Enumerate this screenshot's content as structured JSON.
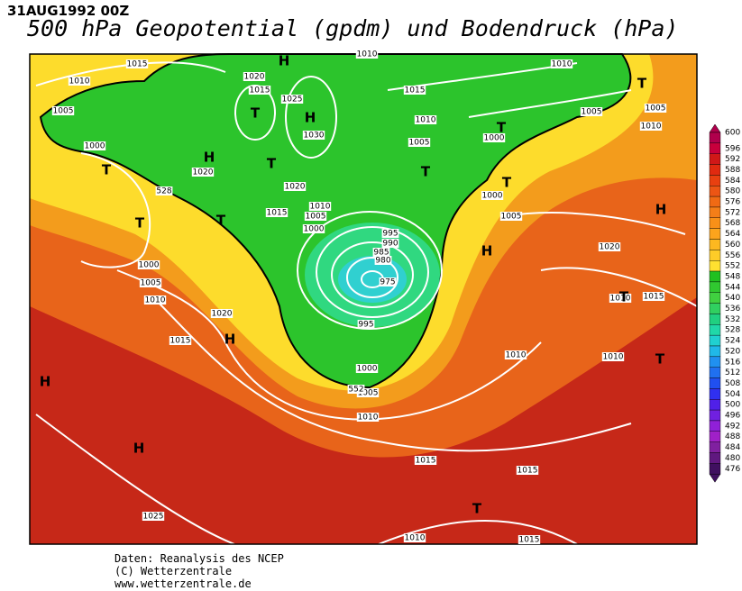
{
  "header": {
    "date": "31AUG1992 00Z",
    "title": "500 hPa Geopotential (gpdm) und Bodendruck (hPa)"
  },
  "colorbar": {
    "labels": [
      600,
      596,
      592,
      588,
      584,
      580,
      576,
      572,
      568,
      564,
      560,
      556,
      552,
      548,
      544,
      540,
      536,
      532,
      528,
      524,
      520,
      516,
      512,
      508,
      504,
      500,
      496,
      492,
      488,
      484,
      480,
      476
    ]
  },
  "map": {
    "isobar_labels": [
      "1015",
      "1010",
      "1005",
      "1000",
      "1020",
      "1015",
      "1025",
      "1030",
      "1020",
      "1020",
      "1015",
      "1010",
      "1005",
      "1000",
      "995",
      "990",
      "985",
      "980",
      "975",
      "995",
      "1000",
      "1005",
      "1010",
      "1015",
      "1015",
      "1025",
      "1010",
      "1015",
      "1000",
      "1005",
      "1010",
      "1015",
      "1020",
      "1010",
      "1010",
      "1015",
      "1010",
      "1020",
      "1005",
      "1000",
      "1000",
      "1005",
      "1010",
      "1015",
      "1010",
      "1005",
      "1005",
      "1010",
      "1010",
      "528",
      "552"
    ],
    "markers": [
      "H",
      "T",
      "H",
      "T",
      "H",
      "T",
      "T",
      "T",
      "T",
      "T",
      "T",
      "H",
      "H",
      "T",
      "H",
      "H",
      "H",
      "T",
      "T",
      "T"
    ]
  },
  "footer": {
    "lines": [
      "Daten: Reanalysis des NCEP",
      "(C) Wetterzentrale",
      "www.wetterzentrale.de"
    ]
  }
}
